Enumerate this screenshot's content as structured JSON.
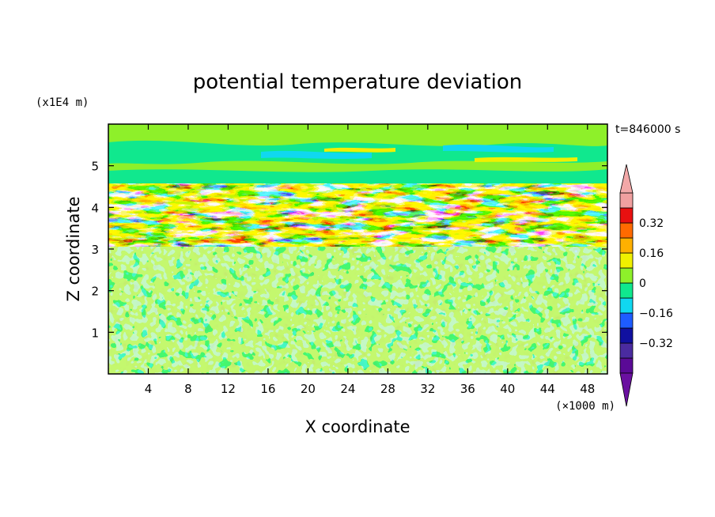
{
  "chart_data": {
    "type": "heatmap",
    "title": "potential temperature deviation",
    "xlabel": "X coordinate",
    "ylabel": "Z coordinate",
    "x_unit": "(×1000 m)",
    "y_unit": "(x1E4 m)",
    "time_label": "t=846000 s",
    "x_ticks": [
      4,
      8,
      12,
      16,
      20,
      24,
      28,
      32,
      36,
      40,
      44,
      48
    ],
    "y_ticks": [
      1,
      2,
      3,
      4,
      5
    ],
    "xlim": [
      0,
      50
    ],
    "ylim": [
      0,
      6
    ],
    "colorbar": {
      "levels": [
        -0.48,
        -0.4,
        -0.32,
        -0.24,
        -0.16,
        -0.08,
        0,
        0.08,
        0.16,
        0.24,
        0.32,
        0.4,
        0.48
      ],
      "tick_labels": [
        "0.32",
        "0.16",
        "0",
        "−0.16",
        "−0.32"
      ],
      "tick_values": [
        0.32,
        0.16,
        0,
        -0.16,
        -0.32
      ],
      "colors": [
        "#5a0a96",
        "#4a2ba0",
        "#1010a0",
        "#1e5cff",
        "#10d8f0",
        "#10e88e",
        "#8ef02a",
        "#f0f000",
        "#ffb000",
        "#ff6a00",
        "#e81010",
        "#f0a0a0"
      ],
      "under_color": "#6a10a0",
      "over_color": "#f2a8a8"
    },
    "regions": [
      {
        "z_range": [
          0,
          3.05
        ],
        "description": "small-scale noise",
        "value_range": [
          -0.08,
          0.08
        ]
      },
      {
        "z_range": [
          3.05,
          4.6
        ],
        "description": "strong layered perturbations",
        "value_range": [
          -0.48,
          0.48
        ]
      },
      {
        "z_range": [
          4.6,
          6.0
        ],
        "description": "smooth wave pattern",
        "value_range": [
          -0.16,
          0.16
        ]
      }
    ]
  }
}
